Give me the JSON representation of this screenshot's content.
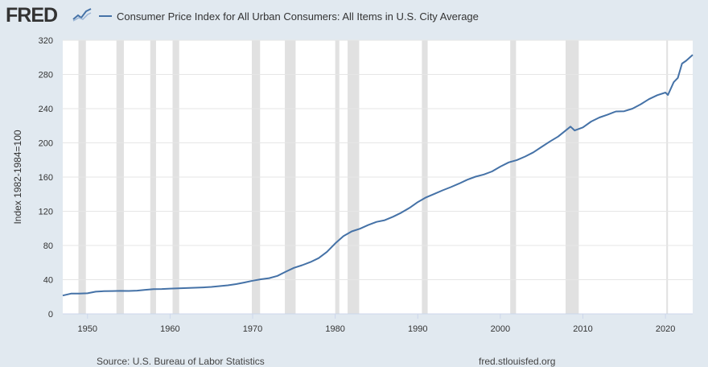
{
  "header": {
    "logo_text": "FRED",
    "logo_icon": "trend-chart-icon"
  },
  "footer": {
    "source": "Source: U.S. Bureau of Labor Statistics",
    "site": "fred.stlouisfed.org"
  },
  "colors": {
    "background": "#e1e9f0",
    "plot_background": "#ffffff",
    "series": "#4572a7",
    "recession": "#e1e1e1",
    "grid": "#e6e6e6"
  },
  "chart_data": {
    "type": "line",
    "title": "",
    "xlabel": "",
    "ylabel": "Index 1982-1984=100",
    "xlim": [
      1947,
      2023.3
    ],
    "ylim": [
      0,
      320
    ],
    "x_ticks": [
      1950,
      1960,
      1970,
      1980,
      1990,
      2000,
      2010,
      2020
    ],
    "y_ticks": [
      0,
      40,
      80,
      120,
      160,
      200,
      240,
      280,
      320
    ],
    "grid": "horizontal",
    "legend_position": "top",
    "series": [
      {
        "name": "Consumer Price Index for All Urban Consumers: All Items in U.S. City Average",
        "x": [
          1947,
          1948,
          1949,
          1950,
          1951,
          1952,
          1953,
          1954,
          1955,
          1956,
          1957,
          1958,
          1959,
          1960,
          1961,
          1962,
          1963,
          1964,
          1965,
          1966,
          1967,
          1968,
          1969,
          1970,
          1971,
          1972,
          1973,
          1974,
          1975,
          1976,
          1977,
          1978,
          1979,
          1980,
          1981,
          1982,
          1983,
          1984,
          1985,
          1986,
          1987,
          1988,
          1989,
          1990,
          1991,
          1992,
          1993,
          1994,
          1995,
          1996,
          1997,
          1998,
          1999,
          2000,
          2001,
          2002,
          2003,
          2004,
          2005,
          2006,
          2007,
          2008.5,
          2009,
          2010,
          2011,
          2012,
          2013,
          2014,
          2015,
          2016,
          2017,
          2018,
          2019,
          2020,
          2020.3,
          2021,
          2021.5,
          2022,
          2022.5,
          2023.3
        ],
        "y": [
          21.5,
          23.7,
          23.8,
          24.1,
          26.0,
          26.5,
          26.7,
          26.9,
          26.8,
          27.2,
          28.1,
          28.9,
          29.1,
          29.6,
          29.9,
          30.2,
          30.6,
          31.0,
          31.5,
          32.5,
          33.4,
          34.8,
          36.7,
          38.8,
          40.5,
          41.8,
          44.4,
          49.3,
          53.8,
          56.9,
          60.6,
          65.2,
          72.6,
          82.4,
          90.9,
          96.5,
          99.6,
          103.9,
          107.6,
          109.6,
          113.6,
          118.3,
          124.0,
          130.7,
          136.2,
          140.3,
          144.5,
          148.2,
          152.4,
          156.9,
          160.5,
          163.0,
          166.6,
          172.2,
          177.1,
          179.9,
          184.0,
          188.9,
          195.3,
          201.6,
          207.3,
          219.0,
          214.5,
          218.1,
          224.9,
          229.6,
          233.0,
          236.7,
          237.0,
          240.0,
          245.1,
          251.1,
          255.7,
          258.8,
          256.0,
          271.0,
          276.0,
          292.7,
          296.0,
          303.0
        ]
      }
    ],
    "recessions": [
      [
        1948.9,
        1949.8
      ],
      [
        1953.5,
        1954.4
      ],
      [
        1957.6,
        1958.3
      ],
      [
        1960.3,
        1961.1
      ],
      [
        1969.9,
        1970.9
      ],
      [
        1973.9,
        1975.2
      ],
      [
        1980.0,
        1980.5
      ],
      [
        1981.5,
        1982.9
      ],
      [
        1990.5,
        1991.2
      ],
      [
        2001.2,
        2001.9
      ],
      [
        2007.9,
        2009.5
      ],
      [
        2020.1,
        2020.3
      ]
    ]
  }
}
